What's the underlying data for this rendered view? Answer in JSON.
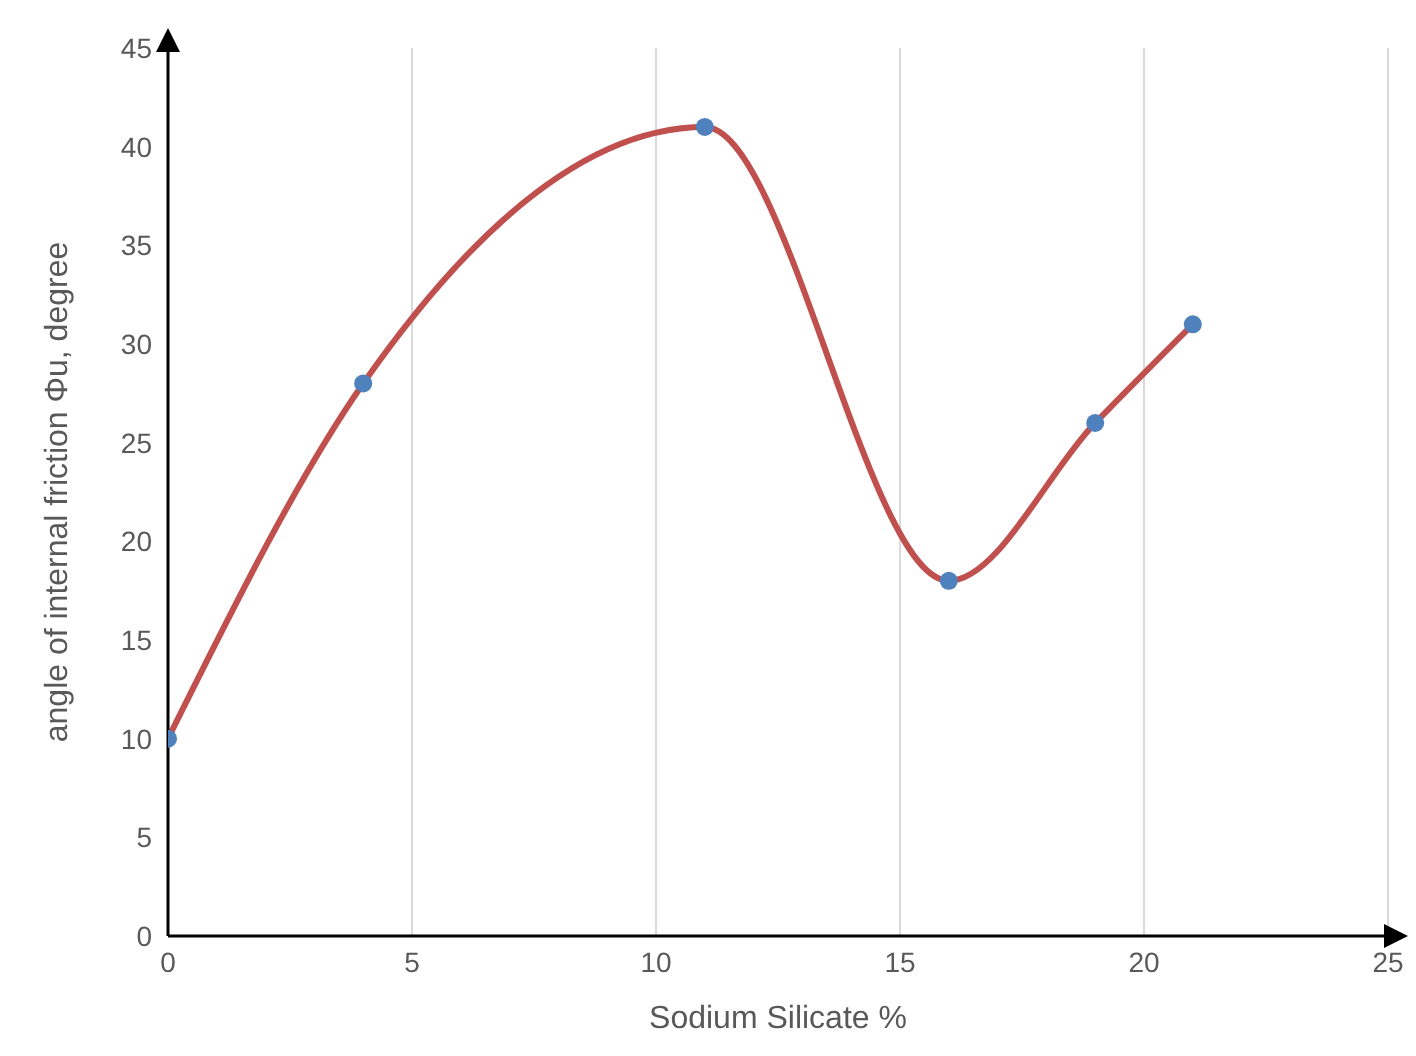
{
  "chart_data": {
    "type": "line",
    "xlabel": "Sodium Silicate  %",
    "ylabel": "angle of internal friction Φu, degree",
    "x": [
      0,
      4,
      11,
      16,
      19,
      21
    ],
    "series": [
      {
        "type": "line",
        "color": "#c0504d",
        "values": [
          10,
          28,
          41,
          18,
          26,
          31
        ],
        "marker": "none"
      },
      {
        "type": "scatter",
        "color": "#4f81bd",
        "values": [
          10,
          28,
          41,
          18,
          26,
          31
        ],
        "marker": "circle"
      }
    ],
    "xlim": [
      0,
      25
    ],
    "xticks": [
      0,
      5,
      10,
      15,
      20,
      25
    ],
    "ylim": [
      0,
      45
    ],
    "yticks": [
      0,
      5,
      10,
      15,
      20,
      25,
      30,
      35,
      40,
      45
    ],
    "grid": "x"
  }
}
